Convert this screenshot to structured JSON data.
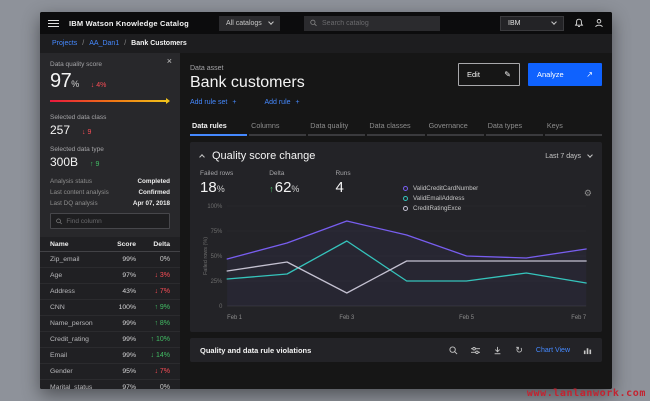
{
  "topbar": {
    "product": "IBM Watson Knowledge Catalog",
    "catalog_selector": "All catalogs",
    "search_placeholder": "Search catalog",
    "account_selector": "IBM"
  },
  "breadcrumb": {
    "items": [
      "Projects",
      "AA_Dan1"
    ],
    "current": "Bank Customers",
    "separator": "/"
  },
  "icons": {
    "close": "×",
    "edit": "✎",
    "launch": "↗",
    "gear": "⚙",
    "refresh": "↻",
    "add": "+",
    "up": "↑",
    "down": "↓"
  },
  "sidebar": {
    "quality_score": {
      "label": "Data quality score",
      "value": "97",
      "unit": "%",
      "delta": "4%",
      "direction": "down",
      "color": "red"
    },
    "data_class": {
      "label": "Selected data class",
      "value": "257",
      "delta": "9",
      "direction": "down",
      "color": "red"
    },
    "data_type": {
      "label": "Selected data type",
      "value": "300B",
      "delta": "9",
      "direction": "up",
      "color": "green"
    },
    "analysis": [
      {
        "label": "Analysis status",
        "value": "Completed"
      },
      {
        "label": "Last content analysis",
        "value": "Confirmed"
      },
      {
        "label": "Last DQ analysis",
        "value": "Apr 07, 2018"
      }
    ],
    "search_placeholder": "Find column",
    "table": {
      "headers": [
        "Name",
        "Score",
        "Delta"
      ],
      "rows": [
        {
          "name": "Zip_email",
          "score": "99%",
          "delta": "0%",
          "direction": "none",
          "color": "flat"
        },
        {
          "name": "Age",
          "score": "97%",
          "delta": "3%",
          "direction": "down",
          "color": "red"
        },
        {
          "name": "Address",
          "score": "43%",
          "delta": "7%",
          "direction": "down",
          "color": "red"
        },
        {
          "name": "CNN",
          "score": "100%",
          "delta": "9%",
          "direction": "up",
          "color": "green"
        },
        {
          "name": "Name_person",
          "score": "99%",
          "delta": "8%",
          "direction": "up",
          "color": "green"
        },
        {
          "name": "Credit_rating",
          "score": "99%",
          "delta": "10%",
          "direction": "up",
          "color": "green"
        },
        {
          "name": "Email",
          "score": "99%",
          "delta": "14%",
          "direction": "down",
          "color": "green"
        },
        {
          "name": "Gender",
          "score": "95%",
          "delta": "7%",
          "direction": "down",
          "color": "red"
        },
        {
          "name": "Marital_status",
          "score": "97%",
          "delta": "0%",
          "direction": "none",
          "color": "flat"
        },
        {
          "name": "Account1",
          "score": "98%",
          "delta": "0%",
          "direction": "none",
          "color": "flat"
        }
      ]
    }
  },
  "main": {
    "asset_label": "Data asset",
    "title": "Bank customers",
    "links": [
      {
        "label": "Add rule set"
      },
      {
        "label": "Add rule"
      }
    ],
    "buttons": {
      "edit": "Edit",
      "analyze": "Analyze"
    },
    "tabs": [
      {
        "label": "Data rules",
        "active": true
      },
      {
        "label": "Columns",
        "active": false
      },
      {
        "label": "Data quality",
        "active": false
      },
      {
        "label": "Data classes",
        "active": false
      },
      {
        "label": "Governance",
        "active": false
      },
      {
        "label": "Data types",
        "active": false
      },
      {
        "label": "Keys",
        "active": false
      }
    ],
    "card": {
      "title": "Quality score change",
      "range": "Last 7 days",
      "metrics": [
        {
          "label": "Failed rows",
          "value": "18",
          "unit": "%",
          "direction": "none"
        },
        {
          "label": "Delta",
          "value": "62",
          "unit": "%",
          "direction": "up"
        },
        {
          "label": "Runs",
          "value": "4",
          "unit": "",
          "direction": "none"
        }
      ]
    },
    "footer": {
      "title": "Quality and data rule violations",
      "view_label": "Chart View"
    }
  },
  "chart_data": {
    "type": "line",
    "x": [
      "Feb 1",
      "Feb 2",
      "Feb 3",
      "Feb 4",
      "Feb 5",
      "Feb 6",
      "Feb 7"
    ],
    "x_tick_indices": [
      0,
      2,
      4,
      6
    ],
    "ylabel": "Failed rows (%)",
    "ylim": [
      0,
      100
    ],
    "yticks": [
      "0",
      "25%",
      "50%",
      "75%",
      "100%"
    ],
    "grid": true,
    "legend_position": "top-right-of-metrics",
    "series": [
      {
        "name": "ValidCreditCardNumber",
        "color": "#785ef0",
        "values": [
          47,
          63,
          85,
          71,
          50,
          48,
          57
        ]
      },
      {
        "name": "ValidEmailAddress",
        "color": "#35c4bc",
        "values": [
          27,
          32,
          65,
          25,
          25,
          33,
          23
        ]
      },
      {
        "name": "CreditRatingExce",
        "color": "#c4c1d1",
        "values": [
          35,
          44,
          13,
          45,
          45,
          45,
          45
        ]
      }
    ]
  },
  "watermark": "www.lanlanwork.com",
  "colors": {
    "accent_blue": "#0f62fe",
    "link_blue": "#4589ff",
    "negative_red": "#fa4d56",
    "positive_green": "#42be65",
    "window_bg": "#161616",
    "panel_bg": "#28282b",
    "card_bg": "#232327",
    "outer_bg": "#8e929a"
  }
}
